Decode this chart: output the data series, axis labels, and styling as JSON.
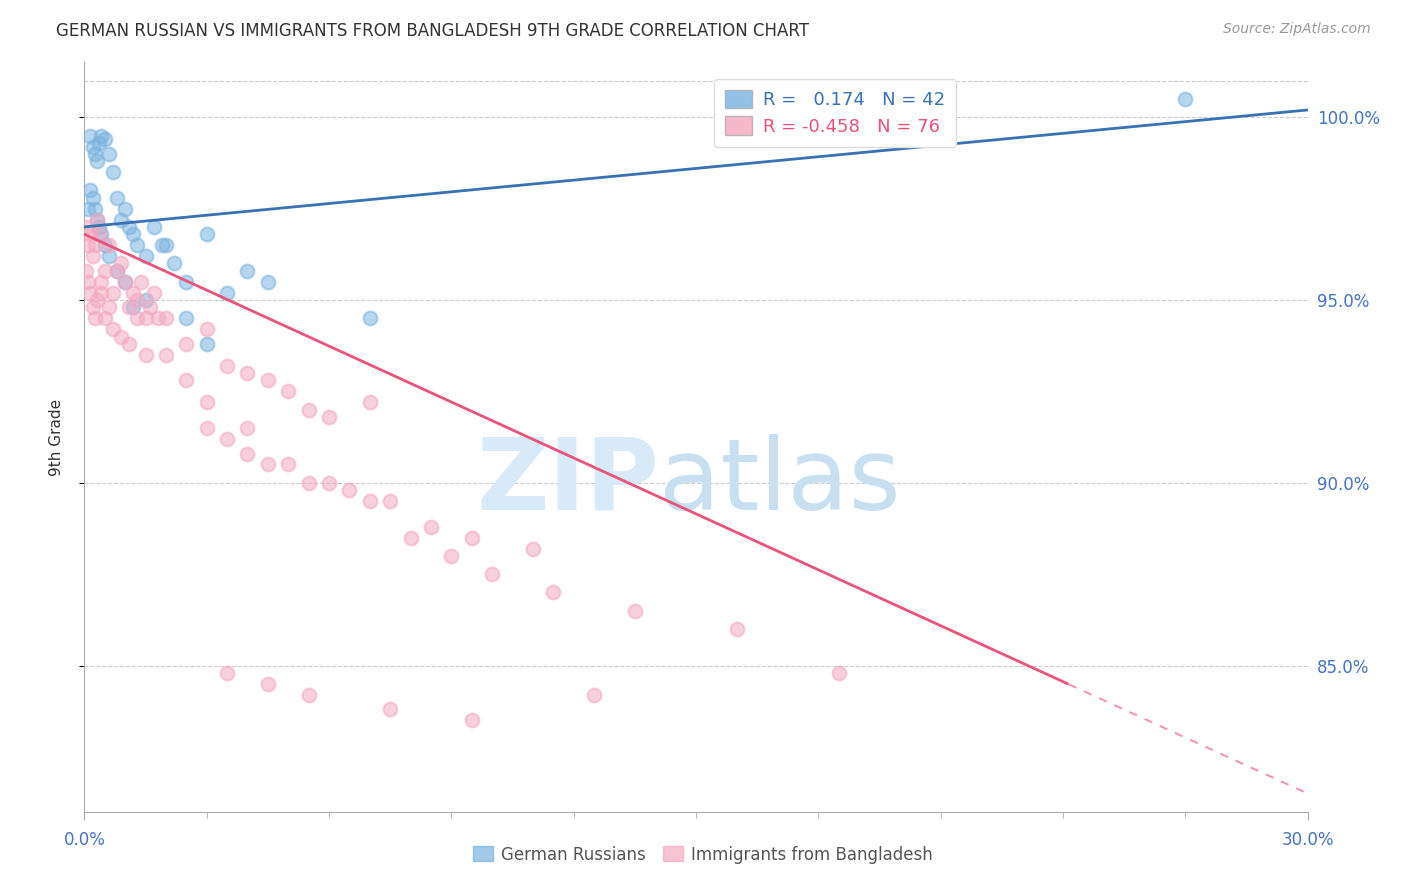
{
  "title": "GERMAN RUSSIAN VS IMMIGRANTS FROM BANGLADESH 9TH GRADE CORRELATION CHART",
  "source": "Source: ZipAtlas.com",
  "ylabel": "9th Grade",
  "xmin": 0.0,
  "xmax": 30.0,
  "ymin": 81.0,
  "ymax": 101.5,
  "yticks": [
    85.0,
    90.0,
    95.0,
    100.0
  ],
  "ytick_labels": [
    "85.0%",
    "90.0%",
    "95.0%",
    "100.0%"
  ],
  "legend_blue_label": "R =   0.174   N = 42",
  "legend_pink_label": "R = -0.458   N = 76",
  "blue_color": "#7ab3e0",
  "pink_color": "#f4a8c0",
  "blue_line_color": "#3872b5",
  "pink_line_color": "#e8547a",
  "blue_line_x0": 0.0,
  "blue_line_y0": 97.0,
  "blue_line_x1": 30.0,
  "blue_line_y1": 100.2,
  "pink_line_x0": 0.0,
  "pink_line_y0": 96.8,
  "pink_line_x1": 30.0,
  "pink_line_y1": 81.5,
  "pink_dash_threshold": 84.5,
  "blue_scatter_x": [
    0.1,
    0.15,
    0.2,
    0.25,
    0.3,
    0.35,
    0.4,
    0.5,
    0.6,
    0.7,
    0.8,
    0.9,
    1.0,
    1.1,
    1.2,
    1.3,
    1.5,
    1.7,
    1.9,
    2.2,
    2.5,
    3.0,
    3.5,
    4.0,
    0.15,
    0.2,
    0.25,
    0.3,
    0.35,
    0.4,
    0.5,
    0.6,
    0.8,
    1.0,
    1.2,
    1.5,
    2.0,
    2.5,
    3.0,
    4.5,
    7.0,
    27.0
  ],
  "blue_scatter_y": [
    97.5,
    99.5,
    99.2,
    99.0,
    98.8,
    99.3,
    99.5,
    99.4,
    99.0,
    98.5,
    97.8,
    97.2,
    97.5,
    97.0,
    96.8,
    96.5,
    96.2,
    97.0,
    96.5,
    96.0,
    95.5,
    96.8,
    95.2,
    95.8,
    98.0,
    97.8,
    97.5,
    97.2,
    97.0,
    96.8,
    96.5,
    96.2,
    95.8,
    95.5,
    94.8,
    95.0,
    96.5,
    94.5,
    93.8,
    95.5,
    94.5,
    100.5
  ],
  "pink_scatter_x": [
    0.05,
    0.1,
    0.15,
    0.2,
    0.25,
    0.3,
    0.35,
    0.4,
    0.5,
    0.6,
    0.7,
    0.8,
    0.9,
    1.0,
    1.1,
    1.2,
    1.3,
    1.4,
    1.5,
    1.6,
    1.7,
    1.8,
    0.05,
    0.1,
    0.15,
    0.2,
    0.25,
    0.3,
    0.4,
    0.5,
    0.6,
    0.7,
    0.9,
    1.1,
    1.3,
    1.5,
    2.0,
    2.5,
    3.0,
    3.5,
    4.0,
    4.5,
    5.0,
    5.5,
    6.0,
    7.0,
    3.0,
    3.5,
    4.0,
    4.5,
    5.5,
    6.5,
    7.5,
    8.5,
    9.5,
    11.0,
    2.0,
    2.5,
    3.0,
    4.0,
    5.0,
    6.0,
    7.0,
    8.0,
    9.0,
    10.0,
    11.5,
    13.5,
    16.0,
    18.5,
    3.5,
    4.5,
    5.5,
    7.5,
    9.5,
    12.5
  ],
  "pink_scatter_y": [
    97.0,
    96.5,
    96.8,
    96.2,
    96.5,
    97.2,
    96.8,
    95.5,
    95.8,
    96.5,
    95.2,
    95.8,
    96.0,
    95.5,
    94.8,
    95.2,
    95.0,
    95.5,
    94.5,
    94.8,
    95.2,
    94.5,
    95.8,
    95.5,
    95.2,
    94.8,
    94.5,
    95.0,
    95.2,
    94.5,
    94.8,
    94.2,
    94.0,
    93.8,
    94.5,
    93.5,
    94.5,
    93.8,
    94.2,
    93.2,
    93.0,
    92.8,
    92.5,
    92.0,
    91.8,
    92.2,
    91.5,
    91.2,
    90.8,
    90.5,
    90.0,
    89.8,
    89.5,
    88.8,
    88.5,
    88.2,
    93.5,
    92.8,
    92.2,
    91.5,
    90.5,
    90.0,
    89.5,
    88.5,
    88.0,
    87.5,
    87.0,
    86.5,
    86.0,
    84.8,
    84.8,
    84.5,
    84.2,
    83.8,
    83.5,
    84.2
  ]
}
